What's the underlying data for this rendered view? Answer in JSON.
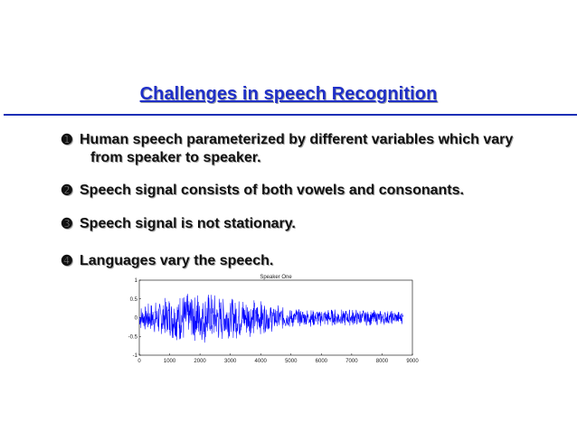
{
  "slide": {
    "title": "Challenges in speech Recognition",
    "bullets": [
      {
        "marker": "➊",
        "line1": "Human speech parameterized by different variables which vary",
        "line2": "from speaker to speaker."
      },
      {
        "marker": "➋",
        "line1": "Speech signal consists of both vowels and consonants."
      },
      {
        "marker": "➌",
        "line1": "Speech signal is not stationary."
      },
      {
        "marker": "➍",
        "line1": "Languages vary the speech."
      }
    ]
  },
  "chart_data": {
    "type": "line",
    "title": "Speaker One",
    "xlabel": "",
    "ylabel": "",
    "xlim": [
      0,
      9000
    ],
    "ylim": [
      -1,
      1
    ],
    "x_ticks": [
      "0",
      "1000",
      "2000",
      "3000",
      "4000",
      "5000",
      "6000",
      "7000",
      "8000",
      "9000"
    ],
    "y_ticks": [
      "1",
      "0.5",
      "0",
      "-0.5",
      "-1"
    ],
    "series_color": "#0000ff",
    "signal_end": 8700
  }
}
